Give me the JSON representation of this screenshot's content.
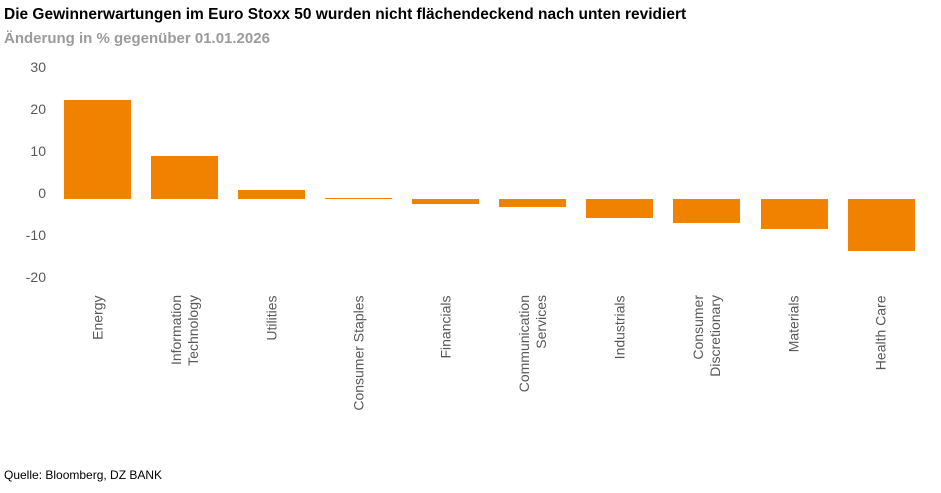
{
  "header": {
    "title": "Die Gewinnerwartungen im Euro Stoxx 50 wurden nicht flächendeckend nach unten revidiert",
    "subtitle": "Änderung in % gegenüber 01.01.2026"
  },
  "footer": {
    "source": "Quelle: Bloomberg, DZ BANK"
  },
  "colors": {
    "bar": "#F08200",
    "title_text": "#000000",
    "subtitle_text": "#9B9B9B",
    "axis_text": "#595959"
  },
  "chart_data": {
    "type": "bar",
    "title": "Die Gewinnerwartungen im Euro Stoxx 50 wurden nicht flächendeckend nach unten revidiert",
    "subtitle": "Änderung in % gegenüber 01.01.2026",
    "categories": [
      "Energy",
      "Information\nTechnology",
      "Utilities",
      "Consumer Staples",
      "Financials",
      "Communication\nServices",
      "Industrials",
      "Consumer\nDiscretionary",
      "Materials",
      "Health Care"
    ],
    "values": [
      23.6,
      10.3,
      2.2,
      0.3,
      -1.1,
      -1.8,
      -4.6,
      -5.8,
      -7.2,
      -12.4
    ],
    "xlabel": "",
    "ylabel": "Änderung in % gegenüber 01.01.2026",
    "ylim": [
      -20,
      30
    ],
    "yticks": [
      30,
      20,
      10,
      0,
      -10,
      -20
    ],
    "grid": false,
    "legend": false,
    "bar_color": "#F08200",
    "source": "Quelle: Bloomberg, DZ BANK"
  }
}
